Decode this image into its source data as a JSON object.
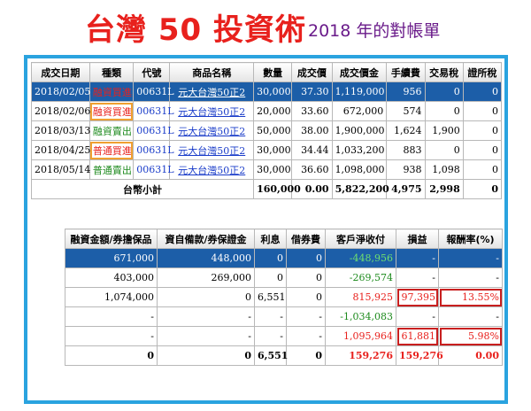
{
  "header": {
    "title": "台灣 50 投資術",
    "subtitle": "2018 年的對帳單"
  },
  "trades": {
    "columns": [
      "成交日期",
      "種類",
      "代號",
      "商品名稱",
      "數量",
      "成交價",
      "成交價金",
      "手續費",
      "交易稅",
      "證所稅"
    ],
    "rows": [
      {
        "date": "2018/02/05",
        "type": "融資買進",
        "code": "00631L",
        "name": "元大台灣50正2",
        "qty": "30,000",
        "price": "37.30",
        "amount": "1,119,000",
        "fee": "956",
        "tax": "0",
        "sec_tax": "0"
      },
      {
        "date": "2018/02/06",
        "type": "融資買進",
        "code": "00631L",
        "name": "元大台灣50正2",
        "qty": "20,000",
        "price": "33.60",
        "amount": "672,000",
        "fee": "574",
        "tax": "0",
        "sec_tax": "0"
      },
      {
        "date": "2018/03/13",
        "type": "融資賣出",
        "code": "00631L",
        "name": "元大台灣50正2",
        "qty": "50,000",
        "price": "38.00",
        "amount": "1,900,000",
        "fee": "1,624",
        "tax": "1,900",
        "sec_tax": "0"
      },
      {
        "date": "2018/04/25",
        "type": "普通買進",
        "code": "00631L",
        "name": "元大台灣50正2",
        "qty": "30,000",
        "price": "34.44",
        "amount": "1,033,200",
        "fee": "883",
        "tax": "0",
        "sec_tax": "0"
      },
      {
        "date": "2018/05/14",
        "type": "普通賣出",
        "code": "00631L",
        "name": "元大台灣50正2",
        "qty": "30,000",
        "price": "36.60",
        "amount": "1,098,000",
        "fee": "938",
        "tax": "1,098",
        "sec_tax": "0"
      }
    ],
    "subtotal": {
      "label": "台幣小計",
      "qty": "160,000",
      "price": "0.00",
      "amount": "5,822,200",
      "fee": "4,975",
      "tax": "2,998",
      "sec_tax": "0"
    }
  },
  "settlement": {
    "columns": [
      "融資金額/券擔保品",
      "資自備款/券保證金",
      "利息",
      "借券費",
      "客戶淨收付",
      "損益",
      "報酬率(%)"
    ],
    "rows": [
      {
        "margin": "671,000",
        "self": "448,000",
        "interest": "0",
        "lend": "0",
        "net": "-448,956",
        "pnl": "-",
        "ret": "-"
      },
      {
        "margin": "403,000",
        "self": "269,000",
        "interest": "0",
        "lend": "0",
        "net": "-269,574",
        "pnl": "-",
        "ret": "-"
      },
      {
        "margin": "1,074,000",
        "self": "0",
        "interest": "6,551",
        "lend": "0",
        "net": "815,925",
        "pnl": "97,395",
        "ret": "13.55%"
      },
      {
        "margin": "-",
        "self": "-",
        "interest": "-",
        "lend": "-",
        "net": "-1,034,083",
        "pnl": "-",
        "ret": "-"
      },
      {
        "margin": "-",
        "self": "-",
        "interest": "-",
        "lend": "-",
        "net": "1,095,964",
        "pnl": "61,881",
        "ret": "5.98%"
      }
    ],
    "total": {
      "margin": "0",
      "self": "0",
      "interest": "6,551",
      "lend": "0",
      "net": "159,276",
      "pnl": "159,276",
      "ret": "0.00"
    }
  }
}
